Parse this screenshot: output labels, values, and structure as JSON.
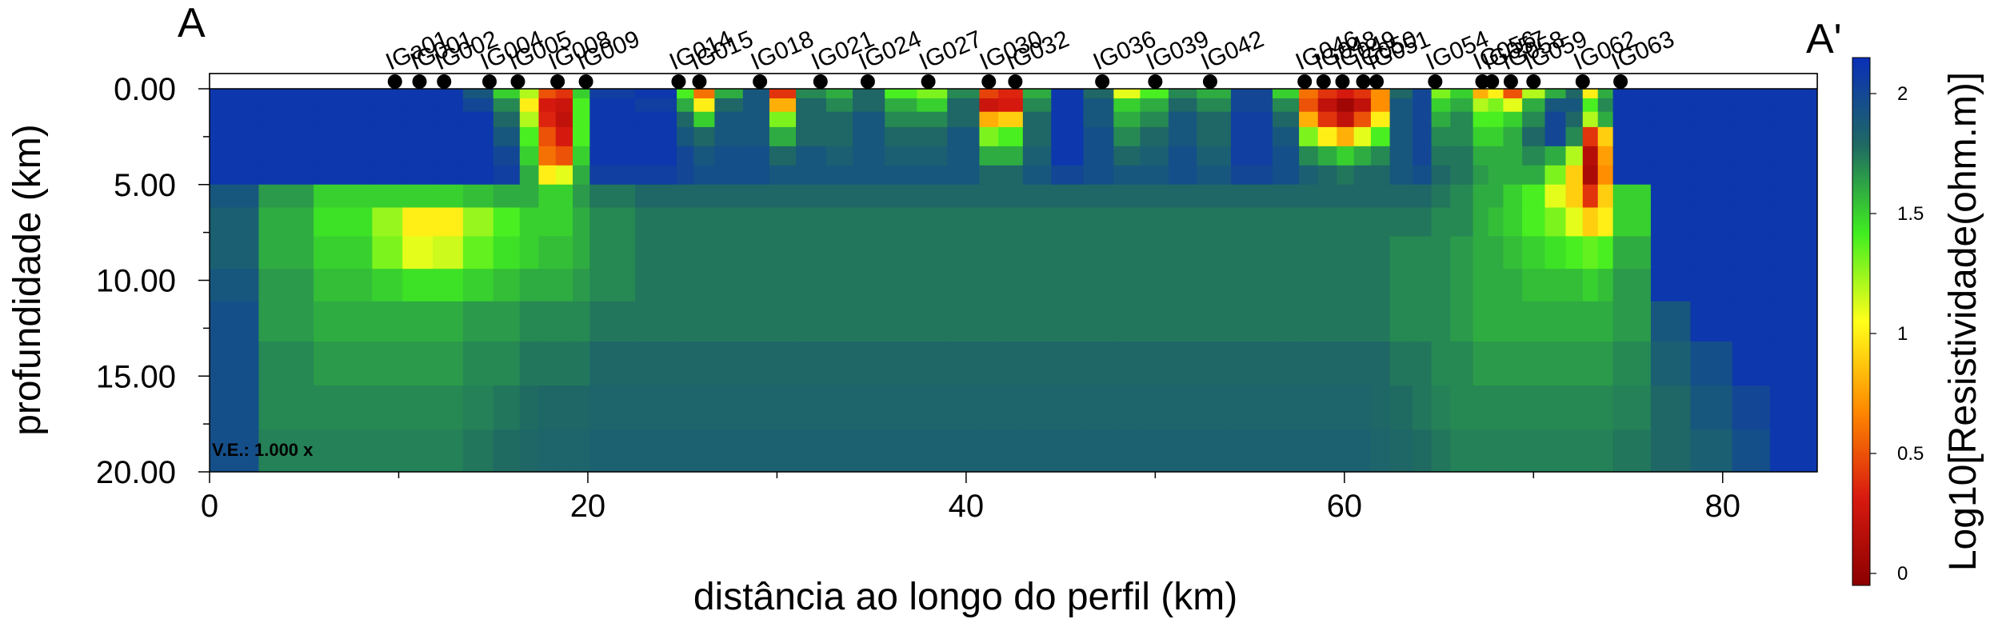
{
  "chart_data": {
    "type": "heatmap",
    "title": "",
    "corner_left": "A",
    "corner_right": "A'",
    "xlabel": "distância ao longo do perfil (km)",
    "ylabel": "profundidade (km)",
    "xlim": [
      0,
      85
    ],
    "ylim": [
      20,
      0
    ],
    "x_ticks": [
      "0",
      "20",
      "40",
      "60",
      "80"
    ],
    "x_tick_values": [
      0,
      20,
      40,
      60,
      80
    ],
    "y_ticks": [
      "0.00",
      "5.00",
      "10.00",
      "15.00",
      "20.00"
    ],
    "y_tick_values": [
      0,
      5,
      10,
      15,
      20
    ],
    "ve_note": "V.E.: 1.000 x",
    "colorbar": {
      "label": "Log10[Resistividade(ohm.m)]",
      "range": [
        -0.05,
        2.15
      ],
      "ticks": [
        "0",
        "0.5",
        "1",
        "1.5",
        "2"
      ],
      "tick_values": [
        0,
        0.5,
        1,
        1.5,
        2
      ],
      "colors": [
        "#8b0000",
        "#d81a10",
        "#ff8a00",
        "#ffff1a",
        "#40ee20",
        "#1f6a62",
        "#0a2fb8"
      ]
    },
    "stations": [
      {
        "name": "IGa01",
        "x": 9.8
      },
      {
        "name": "IG001",
        "x": 11.1
      },
      {
        "name": "IG002",
        "x": 12.4
      },
      {
        "name": "IG004",
        "x": 14.8
      },
      {
        "name": "IG005",
        "x": 16.3
      },
      {
        "name": "IG008",
        "x": 18.4
      },
      {
        "name": "IG009",
        "x": 19.9
      },
      {
        "name": "IG014",
        "x": 24.8
      },
      {
        "name": "IG015",
        "x": 25.9
      },
      {
        "name": "IG018",
        "x": 29.1
      },
      {
        "name": "IG021",
        "x": 32.3
      },
      {
        "name": "IG024",
        "x": 34.8
      },
      {
        "name": "IG027",
        "x": 38.0
      },
      {
        "name": "IG030",
        "x": 41.2
      },
      {
        "name": "IG032",
        "x": 42.6
      },
      {
        "name": "IG036",
        "x": 47.2
      },
      {
        "name": "IG039",
        "x": 50.0
      },
      {
        "name": "IG042",
        "x": 52.9
      },
      {
        "name": "IG046",
        "x": 57.9
      },
      {
        "name": "IG048",
        "x": 58.9
      },
      {
        "name": "IG049",
        "x": 59.9
      },
      {
        "name": "IG050",
        "x": 61.0
      },
      {
        "name": "IG051",
        "x": 61.7
      },
      {
        "name": "IG054",
        "x": 64.8
      },
      {
        "name": "IG056",
        "x": 67.3
      },
      {
        "name": "IG057",
        "x": 67.8
      },
      {
        "name": "IG058",
        "x": 68.8
      },
      {
        "name": "IG059",
        "x": 70.0
      },
      {
        "name": "IG062",
        "x": 72.6
      },
      {
        "name": "IG063",
        "x": 74.6
      }
    ],
    "grid": {
      "x_edges": [
        0,
        2.6,
        5.5,
        8.6,
        10.2,
        11.8,
        13.4,
        15.0,
        16.4,
        17.4,
        18.3,
        19.2,
        20.1,
        22.5,
        24.7,
        25.6,
        26.7,
        28.2,
        29.6,
        31.0,
        32.6,
        34.0,
        35.7,
        37.4,
        39.0,
        40.7,
        41.7,
        43.0,
        44.5,
        46.2,
        47.8,
        49.2,
        50.7,
        52.2,
        54.0,
        56.2,
        57.6,
        58.6,
        59.6,
        60.5,
        61.4,
        62.4,
        63.6,
        64.6,
        65.6,
        66.8,
        67.6,
        68.4,
        69.4,
        70.6,
        71.7,
        72.6,
        73.4,
        74.2,
        76.2,
        78.3,
        80.5,
        82.5,
        85.0
      ],
      "y_edges": [
        0,
        0.5,
        1.2,
        2.0,
        3.0,
        4.0,
        5.0,
        6.2,
        7.7,
        9.4,
        11.1,
        13.2,
        15.5,
        17.8,
        20.0
      ],
      "values": [
        [
          2.1,
          2.1,
          2.1,
          2.1,
          2.1,
          2.1,
          1.9,
          1.5,
          1.2,
          0.5,
          0.4,
          1.5,
          2.05,
          2.1,
          1.4,
          0.6,
          1.6,
          1.9,
          0.4,
          1.7,
          1.6,
          1.8,
          1.4,
          1.3,
          1.7,
          0.45,
          0.35,
          1.6,
          2.1,
          1.8,
          1.1,
          1.4,
          1.7,
          1.6,
          2.0,
          1.5,
          0.6,
          0.4,
          0.3,
          0.4,
          0.7,
          1.8,
          2.0,
          1.3,
          1.5,
          0.8,
          1.0,
          0.5,
          1.2,
          1.6,
          1.8,
          1.0,
          1.6,
          2.1,
          2.1,
          2.1,
          2.1,
          2.1
        ],
        [
          2.1,
          2.1,
          2.1,
          2.1,
          2.1,
          2.1,
          2.0,
          1.7,
          1.0,
          0.3,
          0.25,
          1.4,
          2.1,
          2.05,
          1.6,
          1.0,
          1.8,
          1.9,
          0.8,
          1.8,
          1.7,
          1.8,
          1.6,
          1.5,
          1.8,
          0.25,
          0.3,
          1.7,
          2.1,
          1.9,
          1.5,
          1.6,
          1.8,
          1.7,
          2.0,
          1.7,
          0.5,
          0.2,
          0.05,
          0.2,
          0.7,
          1.9,
          2.0,
          1.5,
          1.6,
          1.2,
          1.3,
          1.1,
          1.6,
          1.9,
          1.9,
          1.4,
          1.7,
          2.1,
          2.1,
          2.1,
          2.1,
          2.1
        ],
        [
          2.1,
          2.1,
          2.1,
          2.1,
          2.1,
          2.1,
          2.1,
          1.8,
          1.2,
          0.35,
          0.2,
          1.4,
          2.1,
          2.1,
          1.8,
          1.5,
          1.9,
          1.9,
          1.3,
          1.8,
          1.8,
          1.9,
          1.7,
          1.7,
          1.8,
          0.8,
          0.9,
          1.8,
          2.1,
          1.9,
          1.6,
          1.7,
          1.9,
          1.8,
          2.05,
          1.8,
          0.8,
          0.4,
          0.2,
          0.5,
          1.0,
          1.9,
          2.0,
          1.6,
          1.7,
          1.4,
          1.4,
          1.5,
          1.7,
          2.0,
          1.8,
          1.2,
          1.6,
          2.1,
          2.1,
          2.1,
          2.1,
          2.1
        ],
        [
          2.1,
          2.1,
          2.1,
          2.1,
          2.1,
          2.1,
          2.1,
          1.9,
          1.4,
          0.5,
          0.3,
          1.4,
          2.1,
          2.1,
          1.9,
          1.8,
          1.9,
          1.9,
          1.6,
          1.8,
          1.8,
          1.9,
          1.8,
          1.8,
          1.9,
          1.3,
          1.4,
          1.8,
          2.1,
          1.95,
          1.7,
          1.8,
          1.9,
          1.8,
          2.05,
          1.9,
          1.3,
          1.0,
          0.8,
          1.1,
          1.4,
          1.9,
          2.0,
          1.7,
          1.7,
          1.5,
          1.5,
          1.6,
          1.8,
          2.0,
          1.7,
          0.4,
          0.9,
          2.1,
          2.1,
          2.1,
          2.1,
          2.1
        ],
        [
          2.1,
          2.1,
          2.1,
          2.1,
          2.1,
          2.1,
          2.1,
          2.0,
          1.5,
          0.6,
          0.5,
          1.5,
          2.1,
          2.1,
          2.0,
          1.9,
          1.95,
          1.95,
          1.8,
          1.9,
          1.85,
          1.9,
          1.85,
          1.85,
          1.9,
          1.6,
          1.6,
          1.85,
          2.1,
          1.95,
          1.8,
          1.85,
          1.95,
          1.85,
          2.05,
          1.95,
          1.7,
          1.6,
          1.5,
          1.6,
          1.7,
          1.9,
          2.0,
          1.75,
          1.75,
          1.6,
          1.6,
          1.6,
          1.7,
          1.6,
          1.2,
          0.15,
          0.75,
          2.1,
          2.1,
          2.1,
          2.1,
          2.1
        ],
        [
          2.1,
          2.1,
          2.1,
          2.1,
          2.1,
          2.1,
          2.1,
          2.05,
          1.6,
          1.0,
          1.1,
          1.6,
          2.05,
          2.05,
          2.0,
          1.95,
          1.95,
          1.95,
          1.9,
          1.9,
          1.9,
          1.9,
          1.9,
          1.9,
          1.9,
          1.8,
          1.8,
          1.9,
          2.0,
          1.95,
          1.9,
          1.9,
          1.95,
          1.9,
          2.0,
          1.95,
          1.85,
          1.8,
          1.75,
          1.8,
          1.8,
          1.9,
          1.95,
          1.8,
          1.75,
          1.65,
          1.6,
          1.6,
          1.6,
          1.3,
          0.9,
          0.1,
          0.7,
          2.1,
          2.1,
          2.1,
          2.1,
          2.1
        ],
        [
          1.9,
          1.65,
          1.5,
          1.5,
          1.5,
          1.5,
          1.55,
          1.6,
          1.6,
          1.5,
          1.5,
          1.65,
          1.75,
          1.8,
          1.8,
          1.8,
          1.8,
          1.8,
          1.8,
          1.8,
          1.8,
          1.8,
          1.8,
          1.8,
          1.8,
          1.8,
          1.8,
          1.8,
          1.8,
          1.8,
          1.8,
          1.8,
          1.8,
          1.8,
          1.8,
          1.8,
          1.8,
          1.8,
          1.8,
          1.8,
          1.8,
          1.8,
          1.8,
          1.75,
          1.7,
          1.6,
          1.6,
          1.5,
          1.4,
          1.1,
          0.9,
          0.4,
          0.9,
          1.5,
          2.1,
          2.1,
          2.1,
          2.1
        ],
        [
          1.85,
          1.6,
          1.45,
          1.25,
          1.0,
          1.0,
          1.25,
          1.4,
          1.5,
          1.5,
          1.5,
          1.6,
          1.7,
          1.75,
          1.75,
          1.75,
          1.75,
          1.75,
          1.75,
          1.75,
          1.75,
          1.75,
          1.75,
          1.75,
          1.75,
          1.75,
          1.75,
          1.75,
          1.75,
          1.75,
          1.75,
          1.75,
          1.75,
          1.75,
          1.75,
          1.75,
          1.75,
          1.75,
          1.75,
          1.75,
          1.75,
          1.75,
          1.75,
          1.7,
          1.7,
          1.6,
          1.55,
          1.5,
          1.4,
          1.3,
          1.1,
          0.9,
          1.0,
          1.5,
          2.1,
          2.1,
          2.1,
          2.1
        ],
        [
          1.85,
          1.6,
          1.5,
          1.3,
          1.1,
          1.15,
          1.35,
          1.45,
          1.5,
          1.55,
          1.55,
          1.6,
          1.7,
          1.75,
          1.75,
          1.75,
          1.75,
          1.75,
          1.75,
          1.75,
          1.75,
          1.75,
          1.75,
          1.75,
          1.75,
          1.75,
          1.75,
          1.75,
          1.75,
          1.75,
          1.75,
          1.75,
          1.75,
          1.75,
          1.75,
          1.75,
          1.75,
          1.75,
          1.75,
          1.75,
          1.75,
          1.7,
          1.7,
          1.7,
          1.65,
          1.6,
          1.6,
          1.55,
          1.5,
          1.45,
          1.4,
          1.35,
          1.4,
          1.6,
          2.1,
          2.1,
          2.1,
          2.1
        ],
        [
          1.9,
          1.65,
          1.55,
          1.5,
          1.45,
          1.45,
          1.5,
          1.55,
          1.6,
          1.6,
          1.6,
          1.65,
          1.7,
          1.75,
          1.75,
          1.75,
          1.75,
          1.75,
          1.75,
          1.75,
          1.75,
          1.75,
          1.75,
          1.75,
          1.75,
          1.75,
          1.75,
          1.75,
          1.75,
          1.75,
          1.75,
          1.75,
          1.75,
          1.75,
          1.75,
          1.75,
          1.75,
          1.75,
          1.75,
          1.75,
          1.75,
          1.7,
          1.7,
          1.7,
          1.65,
          1.6,
          1.6,
          1.6,
          1.55,
          1.55,
          1.55,
          1.5,
          1.55,
          1.65,
          2.1,
          2.1,
          2.1,
          2.1
        ],
        [
          1.95,
          1.65,
          1.6,
          1.6,
          1.6,
          1.6,
          1.65,
          1.65,
          1.7,
          1.7,
          1.7,
          1.7,
          1.75,
          1.75,
          1.75,
          1.75,
          1.75,
          1.75,
          1.75,
          1.75,
          1.75,
          1.75,
          1.75,
          1.75,
          1.75,
          1.75,
          1.75,
          1.75,
          1.75,
          1.75,
          1.75,
          1.75,
          1.75,
          1.75,
          1.75,
          1.75,
          1.75,
          1.75,
          1.75,
          1.75,
          1.75,
          1.7,
          1.7,
          1.7,
          1.65,
          1.6,
          1.6,
          1.6,
          1.6,
          1.6,
          1.6,
          1.6,
          1.6,
          1.65,
          1.9,
          2.1,
          2.1,
          2.1
        ],
        [
          1.95,
          1.7,
          1.65,
          1.65,
          1.65,
          1.65,
          1.7,
          1.7,
          1.75,
          1.75,
          1.75,
          1.75,
          1.8,
          1.8,
          1.8,
          1.8,
          1.8,
          1.8,
          1.8,
          1.8,
          1.8,
          1.8,
          1.8,
          1.8,
          1.8,
          1.8,
          1.8,
          1.8,
          1.8,
          1.8,
          1.8,
          1.8,
          1.8,
          1.8,
          1.8,
          1.8,
          1.8,
          1.8,
          1.8,
          1.8,
          1.8,
          1.75,
          1.75,
          1.7,
          1.7,
          1.65,
          1.65,
          1.65,
          1.65,
          1.65,
          1.65,
          1.65,
          1.65,
          1.7,
          1.85,
          1.95,
          2.1,
          2.1
        ],
        [
          1.95,
          1.7,
          1.7,
          1.7,
          1.7,
          1.7,
          1.72,
          1.75,
          1.78,
          1.8,
          1.8,
          1.8,
          1.82,
          1.82,
          1.82,
          1.82,
          1.82,
          1.82,
          1.82,
          1.82,
          1.82,
          1.82,
          1.82,
          1.82,
          1.82,
          1.82,
          1.82,
          1.82,
          1.82,
          1.82,
          1.82,
          1.82,
          1.82,
          1.82,
          1.82,
          1.82,
          1.82,
          1.82,
          1.82,
          1.82,
          1.8,
          1.78,
          1.75,
          1.72,
          1.7,
          1.7,
          1.7,
          1.7,
          1.7,
          1.7,
          1.7,
          1.7,
          1.7,
          1.72,
          1.8,
          1.9,
          2.0,
          2.1
        ],
        [
          1.95,
          1.72,
          1.72,
          1.72,
          1.72,
          1.72,
          1.75,
          1.78,
          1.8,
          1.82,
          1.82,
          1.82,
          1.84,
          1.84,
          1.84,
          1.84,
          1.84,
          1.84,
          1.84,
          1.84,
          1.84,
          1.84,
          1.84,
          1.84,
          1.84,
          1.84,
          1.84,
          1.84,
          1.84,
          1.84,
          1.84,
          1.84,
          1.84,
          1.84,
          1.84,
          1.84,
          1.84,
          1.84,
          1.84,
          1.84,
          1.82,
          1.8,
          1.78,
          1.75,
          1.72,
          1.72,
          1.72,
          1.72,
          1.72,
          1.72,
          1.72,
          1.72,
          1.72,
          1.75,
          1.8,
          1.85,
          1.95,
          2.1
        ]
      ]
    }
  }
}
